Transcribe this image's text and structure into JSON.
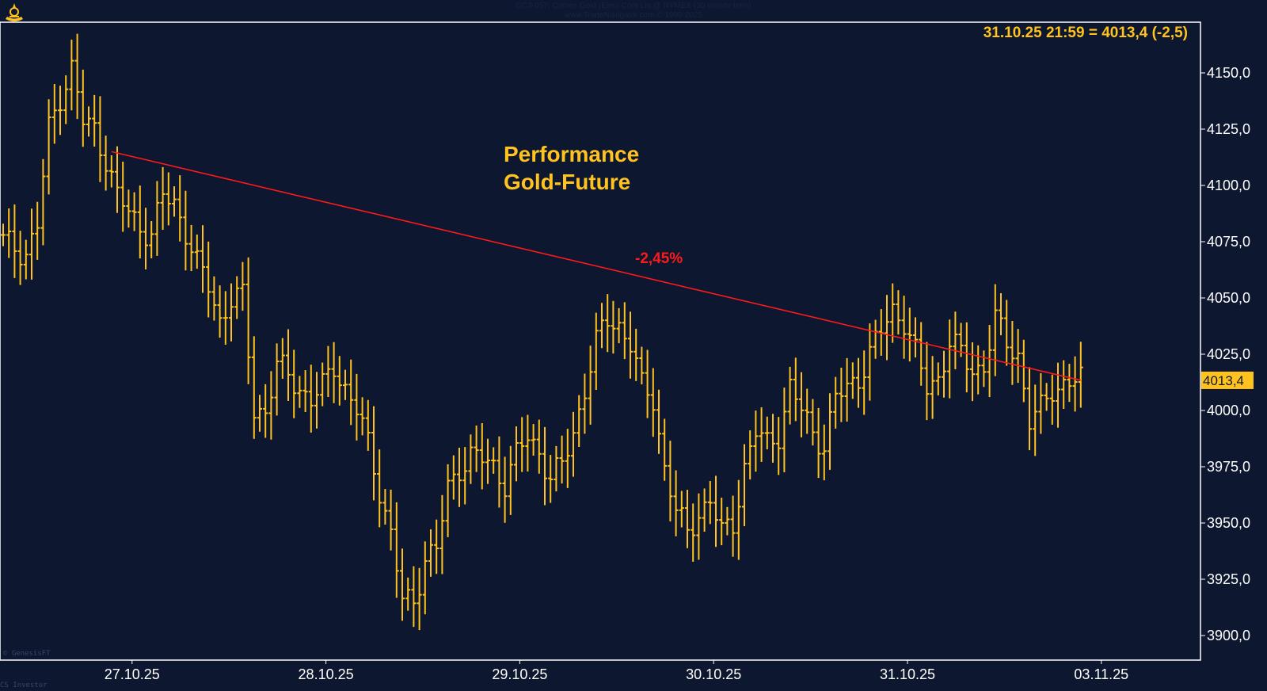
{
  "header": {
    "symbol_line": "GC3-057: Comex Gold (Elec) Cont Liq @ NYMEX (30 minute bars)",
    "source_line": "www.TradeNavigator.com © 1999-2025"
  },
  "footer": {
    "provider": "© GenesisFT",
    "brand": "CS Investor"
  },
  "chart_data": {
    "type": "ohlc-bar",
    "title_line1": "Performance",
    "title_line2": "Gold-Future",
    "readout": "31.10.25 21:59 = 4013,4 (-2,5)",
    "last_price_label": "4013,4",
    "performance_label": "-2,45%",
    "yticks": [
      "4150,0",
      "4125,0",
      "4100,0",
      "4075,0",
      "4050,0",
      "4025,0",
      "4000,0",
      "3975,0",
      "3950,0",
      "3925,0",
      "3900,0"
    ],
    "ytick_values": [
      4150,
      4125,
      4100,
      4075,
      4050,
      4025,
      4000,
      3975,
      3950,
      3925,
      3900
    ],
    "xticks": [
      "27.10.25",
      "28.10.25",
      "29.10.25",
      "30.10.25",
      "31.10.25",
      "03.11.25"
    ],
    "xtick_positions": [
      24,
      58,
      92,
      126,
      160,
      194
    ],
    "ylim": [
      3890,
      4160
    ],
    "bar_count": 190,
    "bar_color": "#ffc21e",
    "trend_color": "#ff1a1a",
    "background": "#0d1730",
    "trend_line": {
      "from_bar": 19,
      "from_value": 4115,
      "to_bar": 189,
      "to_value": 4013.4
    },
    "anchors": [
      [
        0,
        4075
      ],
      [
        4,
        4070
      ],
      [
        6,
        4082
      ],
      [
        8,
        4125
      ],
      [
        10,
        4140
      ],
      [
        12,
        4152
      ],
      [
        14,
        4128
      ],
      [
        16,
        4125
      ],
      [
        18,
        4112
      ],
      [
        20,
        4095
      ],
      [
        22,
        4088
      ],
      [
        24,
        4082
      ],
      [
        26,
        4078
      ],
      [
        28,
        4095
      ],
      [
        30,
        4092
      ],
      [
        32,
        4080
      ],
      [
        34,
        4065
      ],
      [
        36,
        4055
      ],
      [
        38,
        4040
      ],
      [
        40,
        4050
      ],
      [
        42,
        4050
      ],
      [
        44,
        4000
      ],
      [
        46,
        4000
      ],
      [
        48,
        4020
      ],
      [
        50,
        4015
      ],
      [
        52,
        4010
      ],
      [
        54,
        4005
      ],
      [
        56,
        4010
      ],
      [
        58,
        4020
      ],
      [
        60,
        4010
      ],
      [
        62,
        4000
      ],
      [
        64,
        3985
      ],
      [
        66,
        3965
      ],
      [
        68,
        3945
      ],
      [
        70,
        3915
      ],
      [
        72,
        3915
      ],
      [
        74,
        3935
      ],
      [
        76,
        3938
      ],
      [
        78,
        3965
      ],
      [
        80,
        3975
      ],
      [
        82,
        3980
      ],
      [
        84,
        3978
      ],
      [
        86,
        3975
      ],
      [
        88,
        3968
      ],
      [
        90,
        3980
      ],
      [
        92,
        3988
      ],
      [
        94,
        3982
      ],
      [
        96,
        3970
      ],
      [
        98,
        3975
      ],
      [
        100,
        3990
      ],
      [
        102,
        4010
      ],
      [
        104,
        4030
      ],
      [
        106,
        4040
      ],
      [
        108,
        4038
      ],
      [
        110,
        4030
      ],
      [
        112,
        4010
      ],
      [
        114,
        4005
      ],
      [
        116,
        3975
      ],
      [
        118,
        3955
      ],
      [
        120,
        3945
      ],
      [
        122,
        3955
      ],
      [
        124,
        3960
      ],
      [
        126,
        3945
      ],
      [
        128,
        3950
      ],
      [
        130,
        3975
      ],
      [
        132,
        3990
      ],
      [
        134,
        3985
      ],
      [
        136,
        3990
      ],
      [
        138,
        4010
      ],
      [
        140,
        4000
      ],
      [
        142,
        3990
      ],
      [
        144,
        3985
      ],
      [
        146,
        4005
      ],
      [
        148,
        4010
      ],
      [
        150,
        4015
      ],
      [
        152,
        4025
      ],
      [
        154,
        4035
      ],
      [
        156,
        4045
      ],
      [
        158,
        4040
      ],
      [
        160,
        4025
      ],
      [
        162,
        4010
      ],
      [
        164,
        4015
      ],
      [
        166,
        4030
      ],
      [
        168,
        4025
      ],
      [
        170,
        4018
      ],
      [
        172,
        4020
      ],
      [
        174,
        4040
      ],
      [
        176,
        4030
      ],
      [
        178,
        4025
      ],
      [
        180,
        3995
      ],
      [
        182,
        4000
      ],
      [
        184,
        4010
      ],
      [
        186,
        4012
      ],
      [
        189,
        4013.4
      ]
    ]
  }
}
